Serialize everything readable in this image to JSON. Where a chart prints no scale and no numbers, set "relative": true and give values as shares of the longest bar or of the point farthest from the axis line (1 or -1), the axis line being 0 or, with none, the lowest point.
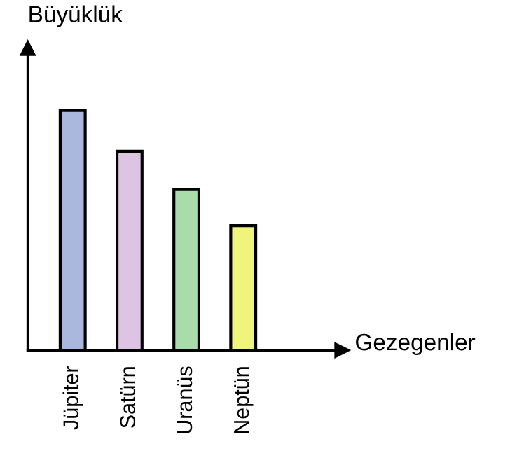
{
  "chart_data": {
    "type": "bar",
    "relative": true,
    "xlabel": "Gezegenler",
    "ylabel": "Büyüklük",
    "categories": [
      "Jüpiter",
      "Satürn",
      "Uranüs",
      "Neptün"
    ],
    "values": [
      1,
      0.83,
      0.67,
      0.52
    ],
    "colors": [
      "#a9b8dc",
      "#dcc4e2",
      "#a9dcaa",
      "#eef47c"
    ],
    "grid": false,
    "legend": false
  }
}
